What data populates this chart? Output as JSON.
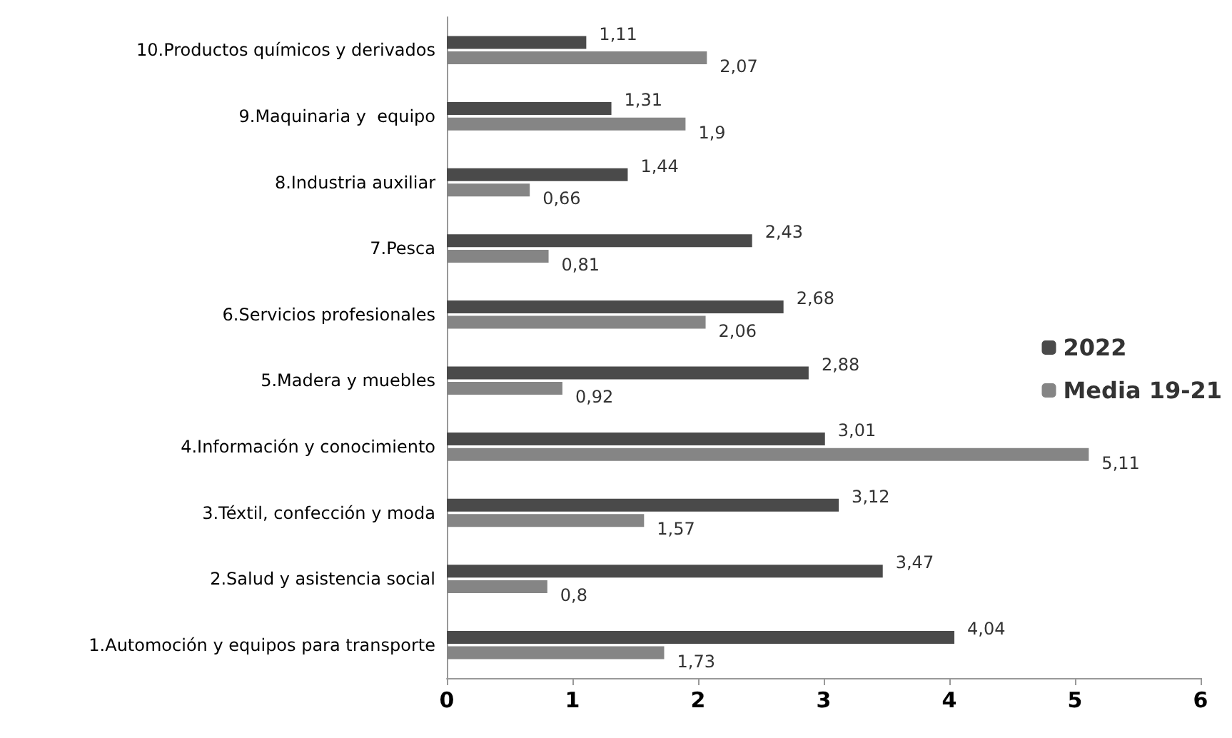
{
  "chart_data": {
    "type": "bar",
    "orientation": "horizontal",
    "categories": [
      "10.Productos químicos y derivados",
      "9.Maquinaria y  equipo",
      "8.Industria auxiliar",
      "7.Pesca",
      "6.Servicios profesionales",
      "5.Madera y muebles",
      "4.Información y conocimiento",
      "3.Téxtil, confección y moda",
      "2.Salud y asistencia social",
      "1.Automoción y equipos para transporte"
    ],
    "series": [
      {
        "name": "2022",
        "color": "#4a4a4a",
        "values": [
          1.11,
          1.31,
          1.44,
          2.43,
          2.68,
          2.88,
          3.01,
          3.12,
          3.47,
          4.04
        ],
        "value_labels": [
          "1,11",
          "1,31",
          "1,44",
          "2,43",
          "2,68",
          "2,88",
          "3,01",
          "3,12",
          "3,47",
          "4,04"
        ]
      },
      {
        "name": "Media 19-21",
        "color": "#858585",
        "values": [
          2.07,
          1.9,
          0.66,
          0.81,
          2.06,
          0.92,
          5.11,
          1.57,
          0.8,
          1.73
        ],
        "value_labels": [
          "2,07",
          "1,9",
          "0,66",
          "0,81",
          "2,06",
          "0,92",
          "5,11",
          "1,57",
          "0,8",
          "1,73"
        ]
      }
    ],
    "xlim": [
      0,
      6
    ],
    "xticks": [
      0,
      1,
      2,
      3,
      4,
      5,
      6
    ],
    "grid": false,
    "legend": "right"
  }
}
